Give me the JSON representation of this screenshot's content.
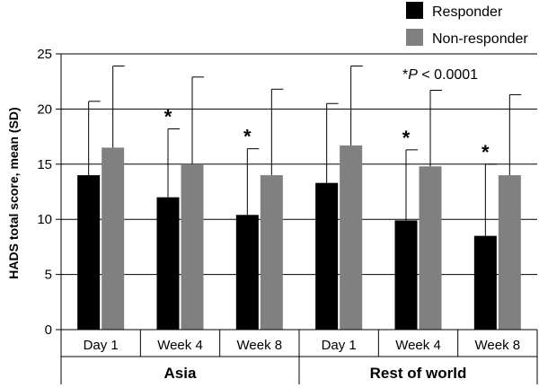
{
  "chart_data": {
    "type": "bar",
    "title": "",
    "ylabel": "HADS total score, mean (SD)",
    "xlabel": "",
    "ylim": [
      0,
      25
    ],
    "yticks": [
      0,
      5,
      10,
      15,
      20,
      25
    ],
    "grid": true,
    "legend_position": "top-right",
    "groups": [
      "Asia",
      "Rest of world"
    ],
    "categories": [
      "Day 1",
      "Week 4",
      "Week 8",
      "Day 1",
      "Week 4",
      "Week 8"
    ],
    "category_group": [
      0,
      0,
      0,
      1,
      1,
      1
    ],
    "series": [
      {
        "name": "Responder",
        "color": "#000000",
        "values": [
          14.0,
          12.0,
          10.4,
          13.3,
          9.9,
          8.5
        ],
        "sd": [
          6.7,
          6.2,
          6.0,
          7.2,
          6.4,
          6.5
        ]
      },
      {
        "name": "Non-responder",
        "color": "#808080",
        "values": [
          16.5,
          15.0,
          14.0,
          16.7,
          14.8,
          14.0
        ],
        "sd": [
          7.4,
          7.9,
          7.8,
          7.2,
          6.9,
          7.3
        ]
      }
    ],
    "significant": [
      false,
      true,
      true,
      false,
      true,
      true
    ],
    "annotation": {
      "prefix": "*",
      "italic": "P",
      "suffix": " < 0.0001"
    },
    "star_symbol": "*"
  }
}
